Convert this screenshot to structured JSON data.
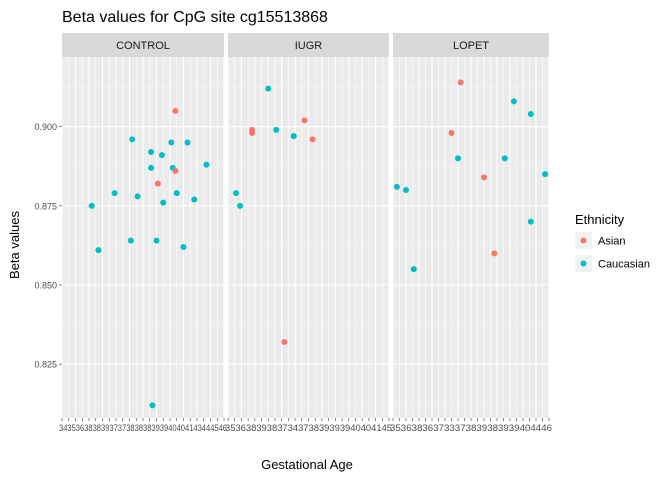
{
  "chart_data": {
    "type": "scatter",
    "title": "Beta values for CpG site cg15513868",
    "xlabel": "Gestational Age",
    "ylabel": "Beta values",
    "ylim": [
      0.808,
      0.922
    ],
    "yticks": [
      0.825,
      0.85,
      0.875,
      0.9
    ],
    "ytick_labels": [
      "0.825",
      "0.850",
      "0.875",
      "0.900"
    ],
    "grid": true,
    "legend": {
      "title": "Ethnicity",
      "position": "right",
      "entries": [
        {
          "name": "Asian",
          "color": "#F8766D"
        },
        {
          "name": "Caucasian",
          "color": "#00BFC4"
        }
      ]
    },
    "x_tick_label_rows": [
      "34 35 36 37 38 39 40 41 42 43 44 45 46",
      "35 36 37 38 39 40 41 42 43 44 45 46"
    ],
    "facets": [
      {
        "name": "CONTROL",
        "xlim": [
          34,
          46
        ],
        "xticks": [
          34,
          34.5,
          35,
          35.5,
          36,
          36.5,
          37,
          37.5,
          38,
          38.5,
          39,
          39.5,
          40,
          40.5,
          41,
          41.5,
          42,
          42.5,
          43,
          43.5,
          44,
          44.5,
          45,
          45.5,
          46
        ],
        "x_label_text": "3435363838393737383838393940404143444546",
        "points": [
          {
            "x": 36.2,
            "y": 0.875,
            "ethnicity": "Caucasian"
          },
          {
            "x": 36.7,
            "y": 0.861,
            "ethnicity": "Caucasian"
          },
          {
            "x": 37.9,
            "y": 0.879,
            "ethnicity": "Caucasian"
          },
          {
            "x": 39.1,
            "y": 0.864,
            "ethnicity": "Caucasian"
          },
          {
            "x": 39.2,
            "y": 0.896,
            "ethnicity": "Caucasian"
          },
          {
            "x": 39.6,
            "y": 0.878,
            "ethnicity": "Caucasian"
          },
          {
            "x": 40.6,
            "y": 0.892,
            "ethnicity": "Caucasian"
          },
          {
            "x": 40.6,
            "y": 0.887,
            "ethnicity": "Caucasian"
          },
          {
            "x": 40.7,
            "y": 0.812,
            "ethnicity": "Caucasian"
          },
          {
            "x": 41.0,
            "y": 0.864,
            "ethnicity": "Caucasian"
          },
          {
            "x": 41.1,
            "y": 0.882,
            "ethnicity": "Asian"
          },
          {
            "x": 41.4,
            "y": 0.891,
            "ethnicity": "Caucasian"
          },
          {
            "x": 41.5,
            "y": 0.876,
            "ethnicity": "Caucasian"
          },
          {
            "x": 42.1,
            "y": 0.895,
            "ethnicity": "Caucasian"
          },
          {
            "x": 42.2,
            "y": 0.887,
            "ethnicity": "Caucasian"
          },
          {
            "x": 42.4,
            "y": 0.905,
            "ethnicity": "Asian"
          },
          {
            "x": 42.4,
            "y": 0.886,
            "ethnicity": "Asian"
          },
          {
            "x": 42.5,
            "y": 0.879,
            "ethnicity": "Caucasian"
          },
          {
            "x": 43.0,
            "y": 0.862,
            "ethnicity": "Caucasian"
          },
          {
            "x": 43.3,
            "y": 0.895,
            "ethnicity": "Caucasian"
          },
          {
            "x": 43.8,
            "y": 0.877,
            "ethnicity": "Caucasian"
          },
          {
            "x": 44.7,
            "y": 0.888,
            "ethnicity": "Caucasian"
          }
        ]
      },
      {
        "name": "IUGR",
        "xlim": [
          34,
          46
        ],
        "xticks": [
          34,
          34.5,
          35,
          35.5,
          36,
          36.5,
          37,
          37.5,
          38,
          38.5,
          39,
          39.5,
          40,
          40.5,
          41,
          41.5,
          42,
          42.5,
          43,
          43.5,
          44,
          44.5,
          45,
          45.5,
          46
        ],
        "x_label_text": "35363839383734373839393940404145",
        "points": [
          {
            "x": 34.6,
            "y": 0.879,
            "ethnicity": "Caucasian"
          },
          {
            "x": 34.9,
            "y": 0.875,
            "ethnicity": "Caucasian"
          },
          {
            "x": 35.8,
            "y": 0.899,
            "ethnicity": "Asian"
          },
          {
            "x": 35.8,
            "y": 0.898,
            "ethnicity": "Asian"
          },
          {
            "x": 37.0,
            "y": 0.912,
            "ethnicity": "Caucasian"
          },
          {
            "x": 37.6,
            "y": 0.899,
            "ethnicity": "Caucasian"
          },
          {
            "x": 38.2,
            "y": 0.832,
            "ethnicity": "Asian"
          },
          {
            "x": 38.9,
            "y": 0.897,
            "ethnicity": "Caucasian"
          },
          {
            "x": 39.7,
            "y": 0.902,
            "ethnicity": "Asian"
          },
          {
            "x": 40.3,
            "y": 0.896,
            "ethnicity": "Asian"
          }
        ]
      },
      {
        "name": "LOPET",
        "xlim": [
          34,
          46
        ],
        "xticks": [
          34,
          34.5,
          35,
          35.5,
          36,
          36.5,
          37,
          37.5,
          38,
          38.5,
          39,
          39.5,
          40,
          40.5,
          41,
          41.5,
          42,
          42.5,
          43,
          43.5,
          44,
          44.5,
          45,
          45.5,
          46
        ],
        "x_label_text": "353638363733373839383939404446",
        "points": [
          {
            "x": 34.3,
            "y": 0.881,
            "ethnicity": "Caucasian"
          },
          {
            "x": 35.0,
            "y": 0.88,
            "ethnicity": "Caucasian"
          },
          {
            "x": 35.6,
            "y": 0.855,
            "ethnicity": "Caucasian"
          },
          {
            "x": 38.5,
            "y": 0.898,
            "ethnicity": "Asian"
          },
          {
            "x": 39.0,
            "y": 0.89,
            "ethnicity": "Caucasian"
          },
          {
            "x": 39.2,
            "y": 0.914,
            "ethnicity": "Asian"
          },
          {
            "x": 41.0,
            "y": 0.884,
            "ethnicity": "Asian"
          },
          {
            "x": 41.8,
            "y": 0.86,
            "ethnicity": "Asian"
          },
          {
            "x": 42.6,
            "y": 0.89,
            "ethnicity": "Caucasian"
          },
          {
            "x": 43.3,
            "y": 0.908,
            "ethnicity": "Caucasian"
          },
          {
            "x": 44.6,
            "y": 0.904,
            "ethnicity": "Caucasian"
          },
          {
            "x": 44.6,
            "y": 0.87,
            "ethnicity": "Caucasian"
          },
          {
            "x": 45.7,
            "y": 0.885,
            "ethnicity": "Caucasian"
          }
        ]
      }
    ]
  }
}
